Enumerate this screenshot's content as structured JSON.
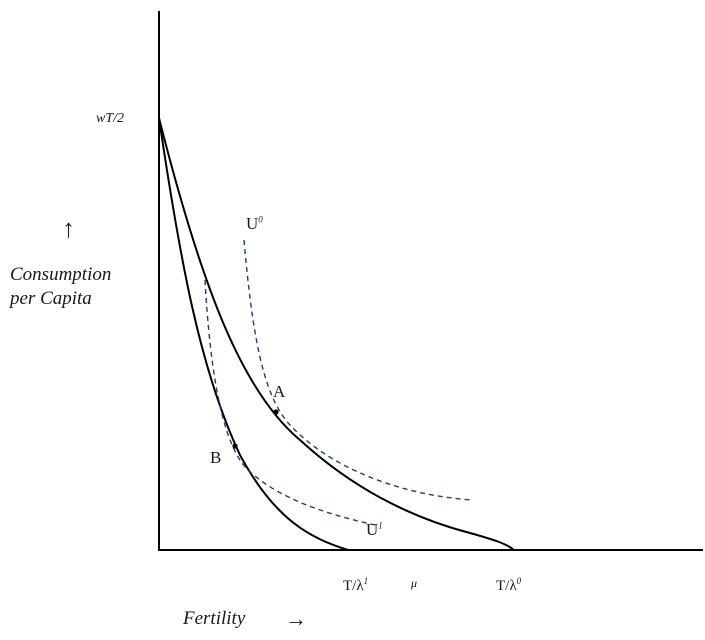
{
  "labels": {
    "y_top": "wT/2",
    "y_axis_title_line1": "Consumption",
    "y_axis_title_line2": "per Capita",
    "y_arrow": "↑",
    "x_axis_title": "Fertility",
    "x_arrow": "→",
    "u0_base": "U",
    "u0_sup": "0",
    "u1_base": "U",
    "u1_sup": "1",
    "point_a": "A",
    "point_b": "B",
    "tick_t_lambda1_base": "T/λ",
    "tick_t_lambda1_sup": "1",
    "tick_mu": "μ",
    "tick_t_lambda0_base": "T/λ",
    "tick_t_lambda0_sup": "0"
  },
  "colors": {
    "axis": "#000000",
    "budget_curve": "#000000",
    "indifference_curve": "#1f3d7a",
    "text": "#1a1a1a"
  }
}
